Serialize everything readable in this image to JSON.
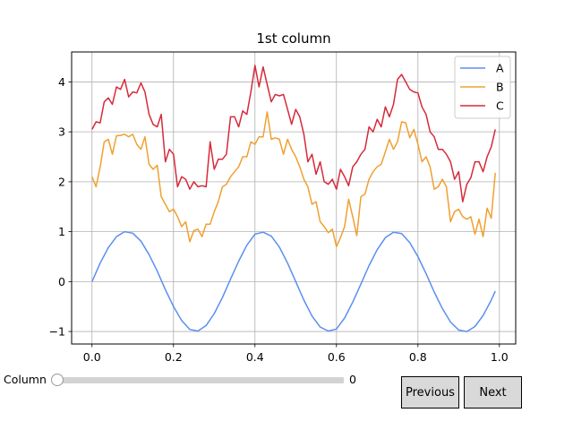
{
  "chart_data": {
    "type": "line",
    "title": "1st column",
    "xlabel": "",
    "ylabel": "",
    "xlim": [
      -0.05,
      1.04
    ],
    "ylim": [
      -1.25,
      4.6
    ],
    "xticks": [
      0.0,
      0.2,
      0.4,
      0.6,
      0.8,
      1.0
    ],
    "xtick_labels": [
      "0.0",
      "0.2",
      "0.4",
      "0.6",
      "0.8",
      "1.0"
    ],
    "yticks": [
      -1,
      0,
      1,
      2,
      3,
      4
    ],
    "ytick_labels": [
      "−1",
      "0",
      "1",
      "2",
      "3",
      "4"
    ],
    "grid": true,
    "legend_position": "top-right",
    "series": [
      {
        "name": "A",
        "color": "#5b8ff0",
        "x": [
          0.0,
          0.02,
          0.04,
          0.06,
          0.08,
          0.1,
          0.12,
          0.14,
          0.16,
          0.18,
          0.2,
          0.22,
          0.24,
          0.26,
          0.28,
          0.3,
          0.32,
          0.34,
          0.36,
          0.38,
          0.4,
          0.42,
          0.44,
          0.46,
          0.48,
          0.5,
          0.52,
          0.54,
          0.56,
          0.58,
          0.6,
          0.62,
          0.64,
          0.66,
          0.68,
          0.7,
          0.72,
          0.74,
          0.76,
          0.78,
          0.8,
          0.82,
          0.84,
          0.86,
          0.88,
          0.9,
          0.92,
          0.94,
          0.96,
          0.98,
          0.99
        ],
        "y": [
          0.0,
          0.37,
          0.68,
          0.9,
          1.0,
          0.97,
          0.81,
          0.54,
          0.21,
          -0.16,
          -0.5,
          -0.78,
          -0.96,
          -0.99,
          -0.88,
          -0.64,
          -0.32,
          0.05,
          0.41,
          0.73,
          0.95,
          0.99,
          0.91,
          0.69,
          0.37,
          0.0,
          -0.37,
          -0.69,
          -0.91,
          -0.99,
          -0.95,
          -0.73,
          -0.41,
          -0.05,
          0.32,
          0.64,
          0.88,
          0.99,
          0.96,
          0.78,
          0.5,
          0.16,
          -0.21,
          -0.54,
          -0.81,
          -0.97,
          -1.0,
          -0.9,
          -0.68,
          -0.37,
          -0.19
        ]
      },
      {
        "name": "B",
        "color": "#f0a030",
        "x": [
          0.0,
          0.01,
          0.02,
          0.03,
          0.04,
          0.05,
          0.06,
          0.07,
          0.08,
          0.09,
          0.1,
          0.11,
          0.12,
          0.13,
          0.14,
          0.15,
          0.16,
          0.17,
          0.18,
          0.19,
          0.2,
          0.21,
          0.22,
          0.23,
          0.24,
          0.25,
          0.26,
          0.27,
          0.28,
          0.29,
          0.3,
          0.31,
          0.32,
          0.33,
          0.34,
          0.35,
          0.36,
          0.37,
          0.38,
          0.39,
          0.4,
          0.41,
          0.42,
          0.43,
          0.44,
          0.45,
          0.46,
          0.47,
          0.48,
          0.49,
          0.5,
          0.51,
          0.52,
          0.53,
          0.54,
          0.55,
          0.56,
          0.57,
          0.58,
          0.59,
          0.6,
          0.61,
          0.62,
          0.63,
          0.64,
          0.65,
          0.66,
          0.67,
          0.68,
          0.69,
          0.7,
          0.71,
          0.72,
          0.73,
          0.74,
          0.75,
          0.76,
          0.77,
          0.78,
          0.79,
          0.8,
          0.81,
          0.82,
          0.83,
          0.84,
          0.85,
          0.86,
          0.87,
          0.88,
          0.89,
          0.9,
          0.91,
          0.92,
          0.93,
          0.94,
          0.95,
          0.96,
          0.97,
          0.98,
          0.99
        ],
        "y": [
          2.1,
          1.9,
          2.3,
          2.8,
          2.85,
          2.55,
          2.92,
          2.93,
          2.95,
          2.9,
          2.95,
          2.75,
          2.65,
          2.9,
          2.35,
          2.25,
          2.33,
          1.7,
          1.55,
          1.4,
          1.45,
          1.3,
          1.1,
          1.2,
          0.8,
          1.02,
          1.05,
          0.9,
          1.15,
          1.15,
          1.4,
          1.6,
          1.9,
          1.95,
          2.1,
          2.2,
          2.3,
          2.5,
          2.5,
          2.8,
          2.75,
          2.9,
          2.9,
          3.4,
          2.85,
          2.88,
          2.85,
          2.55,
          2.85,
          2.65,
          2.5,
          2.3,
          2.05,
          1.9,
          1.55,
          1.6,
          1.2,
          1.1,
          0.98,
          1.05,
          0.7,
          0.88,
          1.1,
          1.65,
          1.3,
          0.92,
          1.7,
          1.75,
          2.05,
          2.2,
          2.3,
          2.35,
          2.6,
          2.85,
          2.65,
          2.8,
          3.2,
          3.18,
          2.88,
          3.05,
          2.75,
          2.4,
          2.5,
          2.3,
          1.85,
          1.9,
          2.05,
          1.9,
          1.2,
          1.4,
          1.45,
          1.3,
          1.25,
          1.3,
          0.95,
          1.25,
          0.9,
          1.47,
          1.27,
          2.18
        ]
      },
      {
        "name": "C",
        "color": "#d62a3a",
        "x": [
          0.0,
          0.01,
          0.02,
          0.03,
          0.04,
          0.05,
          0.06,
          0.07,
          0.08,
          0.09,
          0.1,
          0.11,
          0.12,
          0.13,
          0.14,
          0.15,
          0.16,
          0.17,
          0.18,
          0.19,
          0.2,
          0.21,
          0.22,
          0.23,
          0.24,
          0.25,
          0.26,
          0.27,
          0.28,
          0.29,
          0.3,
          0.31,
          0.32,
          0.33,
          0.34,
          0.35,
          0.36,
          0.37,
          0.38,
          0.39,
          0.4,
          0.41,
          0.42,
          0.43,
          0.44,
          0.45,
          0.46,
          0.47,
          0.48,
          0.49,
          0.5,
          0.51,
          0.52,
          0.53,
          0.54,
          0.55,
          0.56,
          0.57,
          0.58,
          0.59,
          0.6,
          0.61,
          0.62,
          0.63,
          0.64,
          0.65,
          0.66,
          0.67,
          0.68,
          0.69,
          0.7,
          0.71,
          0.72,
          0.73,
          0.74,
          0.75,
          0.76,
          0.77,
          0.78,
          0.79,
          0.8,
          0.81,
          0.82,
          0.83,
          0.84,
          0.85,
          0.86,
          0.87,
          0.88,
          0.89,
          0.9,
          0.91,
          0.92,
          0.93,
          0.94,
          0.95,
          0.96,
          0.97,
          0.98,
          0.99
        ],
        "y": [
          3.05,
          3.2,
          3.18,
          3.6,
          3.68,
          3.55,
          3.9,
          3.85,
          4.05,
          3.7,
          3.8,
          3.78,
          3.98,
          3.8,
          3.35,
          3.15,
          3.1,
          3.35,
          2.4,
          2.65,
          2.55,
          1.9,
          2.1,
          2.05,
          1.85,
          2.0,
          1.9,
          1.92,
          1.9,
          2.8,
          2.25,
          2.45,
          2.45,
          2.55,
          3.3,
          3.3,
          3.1,
          3.42,
          3.35,
          3.8,
          4.33,
          3.9,
          4.3,
          3.95,
          3.6,
          3.75,
          3.72,
          3.75,
          3.45,
          3.15,
          3.45,
          3.3,
          2.95,
          2.4,
          2.55,
          2.15,
          2.4,
          2.0,
          1.95,
          2.05,
          1.85,
          2.25,
          2.1,
          1.92,
          2.3,
          2.4,
          2.55,
          2.65,
          3.1,
          3.0,
          3.25,
          3.1,
          3.5,
          3.3,
          3.55,
          4.05,
          4.15,
          4.0,
          3.85,
          3.8,
          3.78,
          3.5,
          3.35,
          3.0,
          2.9,
          2.65,
          2.65,
          2.55,
          2.4,
          2.05,
          2.2,
          1.6,
          1.95,
          2.08,
          2.4,
          2.4,
          2.2,
          2.5,
          2.7,
          3.05
        ]
      }
    ]
  },
  "controls": {
    "slider": {
      "label": "Column",
      "value": 0,
      "value_text": "0",
      "min": 0,
      "max": 2
    },
    "previous_label": "Previous",
    "next_label": "Next"
  }
}
